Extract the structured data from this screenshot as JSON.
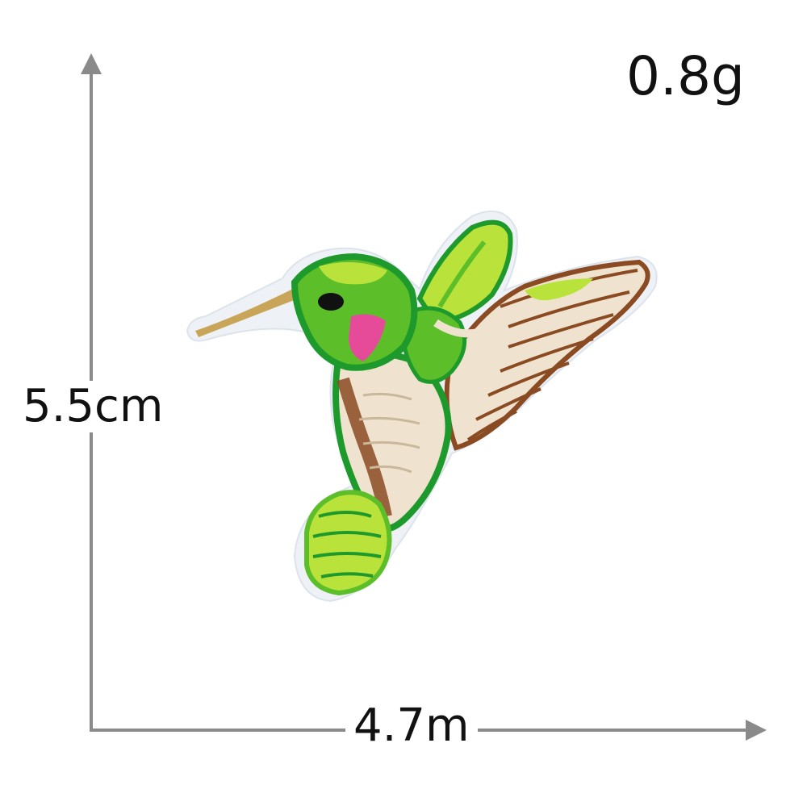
{
  "dimensions": {
    "weight": "0.8g",
    "height": "5.5cm",
    "width": "4.7m"
  },
  "colors": {
    "axis": "#8a8a8a",
    "text": "#111111",
    "felt": "#eef1f6",
    "green_light": "#b9e23a",
    "green_mid": "#5cbf2a",
    "green_dark": "#1e9a2c",
    "cream": "#efe3cf",
    "brown": "#8a4a22",
    "pink": "#e64b9a",
    "gold": "#c9a55a"
  }
}
